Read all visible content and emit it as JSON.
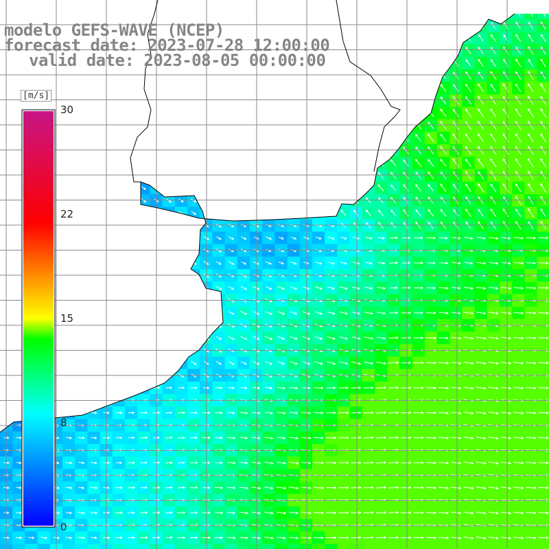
{
  "title": {
    "line1": "modelo GEFS-WAVE (NCEP)",
    "line2": "forecast date: 2023-07-28 12:00:00",
    "line3": "valid date: 2023-08-05 00:00:00"
  },
  "colorbar": {
    "units": "[m/s]",
    "ticks": [
      "30",
      "22",
      "15",
      "8",
      "0"
    ],
    "tick_values": [
      30,
      22,
      15,
      8,
      0
    ],
    "range": [
      0,
      30
    ],
    "colors": [
      "#0000ff",
      "#00ffff",
      "#00ff00",
      "#ffff00",
      "#ff0000",
      "#c71585"
    ]
  },
  "map": {
    "field": "wind speed",
    "land_color": "#ffffff",
    "grid_color": "#888888",
    "coast_color": "#000000",
    "arrow_color": "#ffffff"
  }
}
